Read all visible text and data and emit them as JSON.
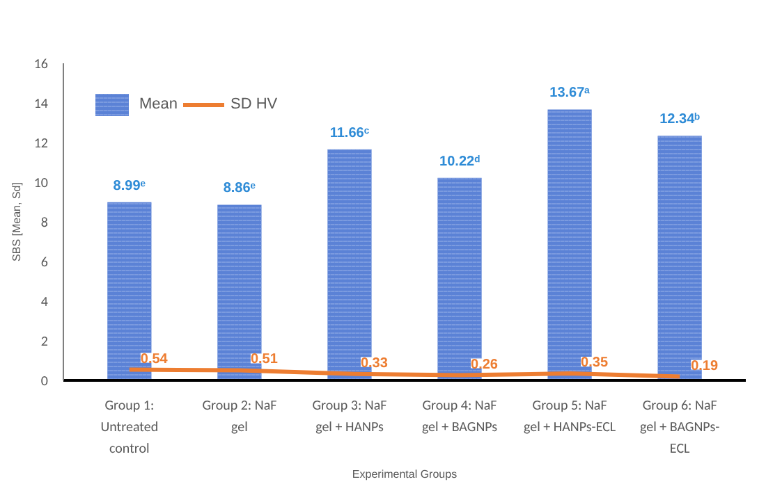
{
  "chart_data": {
    "type": "bar",
    "xlabel": "Experimental Groups",
    "ylabel": "SBS [Mean, Sd]",
    "categories": [
      "Group 1: Untreated control",
      "Group 2: NaF gel",
      "Group 3: NaF gel + HANPs",
      "Group 4: NaF gel + BAGNPs",
      "Group 5: NaF gel + HANPs-ECL",
      "Group 6: NaF gel + BAGNPs-ECL"
    ],
    "series": [
      {
        "name": "Mean",
        "color": "#5b82d6",
        "values": [
          8.99,
          8.86,
          11.66,
          10.22,
          13.67,
          12.34
        ],
        "value_labels": [
          "8.99ᵉ",
          "8.86ᵉ",
          "11.66ᶜ",
          "10.22ᵈ",
          "13.67ᵃ",
          "12.34ᵇ"
        ]
      },
      {
        "name": "SD HV",
        "type": "line",
        "color": "#ed7d31",
        "values": [
          0.54,
          0.51,
          0.33,
          0.26,
          0.35,
          0.19
        ],
        "data_labels": true
      }
    ],
    "ylim": [
      0,
      16
    ],
    "yticks": [
      0,
      2,
      4,
      6,
      8,
      10,
      12,
      14,
      16
    ],
    "grid": false,
    "legend": "top left"
  }
}
